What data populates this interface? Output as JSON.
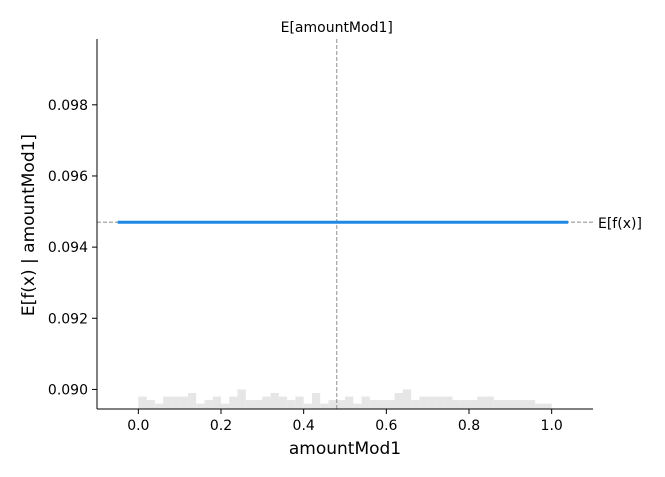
{
  "chart_data": {
    "type": "line",
    "xlabel": "amountMod1",
    "ylabel": "E[f(x) | amountMod1]",
    "xlim": [
      -0.1,
      1.1
    ],
    "ylim": [
      0.08945,
      0.09985
    ],
    "x_ticks": [
      0.0,
      0.2,
      0.4,
      0.6,
      0.8,
      1.0
    ],
    "x_tick_labels": [
      "0.0",
      "0.2",
      "0.4",
      "0.6",
      "0.8",
      "1.0"
    ],
    "y_ticks": [
      0.09,
      0.092,
      0.094,
      0.096,
      0.098
    ],
    "y_tick_labels": [
      "0.090",
      "0.092",
      "0.094",
      "0.096",
      "0.098"
    ],
    "series": [
      {
        "x": [
          -0.05,
          1.04
        ],
        "y": [
          0.0947,
          0.0947
        ],
        "color": "#1e88e5"
      }
    ],
    "expected_x": {
      "value": 0.48,
      "label": "E[amountMod1]"
    },
    "expected_y": {
      "value": 0.0947,
      "label": "E[f(x)]"
    },
    "histogram": {
      "color": "#e6e6e6",
      "bin_start": 0.0,
      "bin_width": 0.02,
      "heights": [
        0.0898,
        0.0897,
        0.0896,
        0.0898,
        0.0898,
        0.0898,
        0.0899,
        0.0896,
        0.0897,
        0.0898,
        0.0896,
        0.0898,
        0.09,
        0.0897,
        0.0897,
        0.0898,
        0.0899,
        0.0898,
        0.0897,
        0.0898,
        0.0896,
        0.0899,
        0.0896,
        0.0897,
        0.0897,
        0.0898,
        0.0896,
        0.0898,
        0.0897,
        0.0897,
        0.0897,
        0.0899,
        0.09,
        0.0897,
        0.0898,
        0.0898,
        0.0898,
        0.0898,
        0.0897,
        0.0897,
        0.0897,
        0.0898,
        0.0898,
        0.0897,
        0.0897,
        0.0897,
        0.0897,
        0.0897,
        0.0896,
        0.0896
      ]
    },
    "grid": false,
    "colors": {
      "line": "#1e88e5",
      "hist": "#e6e6e6",
      "reference": "#999999"
    }
  }
}
